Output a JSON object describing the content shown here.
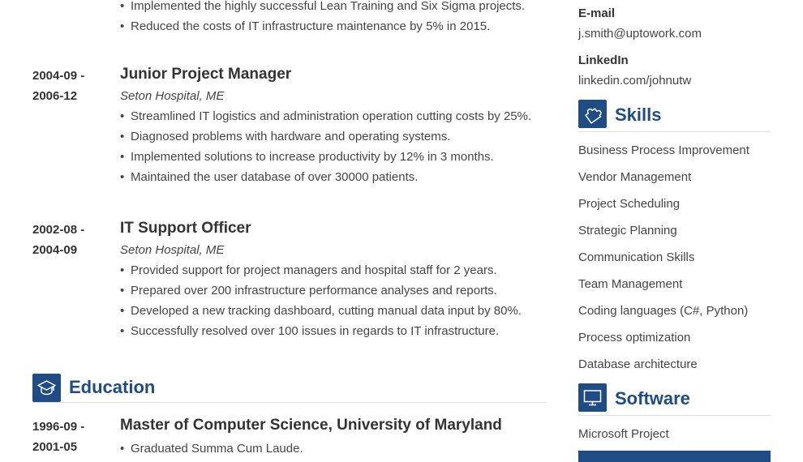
{
  "experience": {
    "top_bullets": [
      "Implemented the highly successful Lean Training and Six Sigma projects.",
      "Reduced the costs of IT infrastructure maintenance by 5% in 2015."
    ],
    "jobs": [
      {
        "date_start": "2004-09 -",
        "date_end": "2006-12",
        "title": "Junior Project Manager",
        "company": "Seton Hospital, ME",
        "bullets": [
          "Streamlined IT logistics and administration operation cutting costs by 25%.",
          "Diagnosed problems with hardware and operating systems.",
          "Implemented solutions to increase productivity by 12% in 3 months.",
          "Maintained the user database of over 30000 patients."
        ]
      },
      {
        "date_start": "2002-08 -",
        "date_end": "2004-09",
        "title": "IT Support Officer",
        "company": "Seton Hospital, ME",
        "bullets": [
          "Provided support for project managers and hospital staff for 2 years.",
          "Prepared over 200 infrastructure performance analyses and reports.",
          "Developed a new tracking dashboard, cutting manual data input by 80%.",
          "Successfully resolved over 100 issues in regards to IT infrastructure."
        ]
      }
    ]
  },
  "education": {
    "heading": "Education",
    "entries": [
      {
        "date_start": "1996-09 -",
        "date_end": "2001-05",
        "title": "Master of Computer Science, University of Maryland",
        "bullets": [
          "Graduated Summa Cum Laude."
        ]
      }
    ]
  },
  "contact": {
    "email_label": "E-mail",
    "email_value": "j.smith@uptowork.com",
    "linkedin_label": "LinkedIn",
    "linkedin_value": "linkedin.com/johnutw"
  },
  "skills": {
    "heading": "Skills",
    "items": [
      "Business Process Improvement",
      "Vendor Management",
      "Project Scheduling",
      "Strategic Planning",
      "Communication Skills",
      "Team Management",
      "Coding languages (C#, Python)",
      "Process optimization",
      "Database architecture"
    ]
  },
  "software": {
    "heading": "Software",
    "items": [
      "Microsoft Project"
    ]
  },
  "colors": {
    "accent": "#1f4c85",
    "text": "#333333",
    "divider": "#dddddd"
  },
  "icons": {
    "education": "graduation-cap-icon",
    "skills": "puzzle-piece-icon",
    "software": "monitor-icon"
  }
}
